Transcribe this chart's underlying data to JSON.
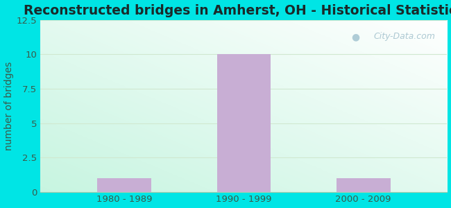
{
  "title": "Reconstructed bridges in Amherst, OH - Historical Statistics",
  "categories": [
    "1980 - 1989",
    "1990 - 1999",
    "2000 - 2009"
  ],
  "values": [
    1,
    10,
    1
  ],
  "bar_color": "#c8aed4",
  "ylabel": "number of bridges",
  "ylim": [
    0,
    12.5
  ],
  "yticks": [
    0,
    2.5,
    5,
    7.5,
    10,
    12.5
  ],
  "background_outer": "#00e5e5",
  "title_fontsize": 13.5,
  "label_fontsize": 10,
  "tick_fontsize": 9.5,
  "bar_width": 0.45,
  "watermark": "City-Data.com",
  "title_color": "#1a2a2a",
  "axis_label_color": "#3a5a4a",
  "tick_color": "#3a5a4a",
  "grid_color": "#d0e8d0"
}
